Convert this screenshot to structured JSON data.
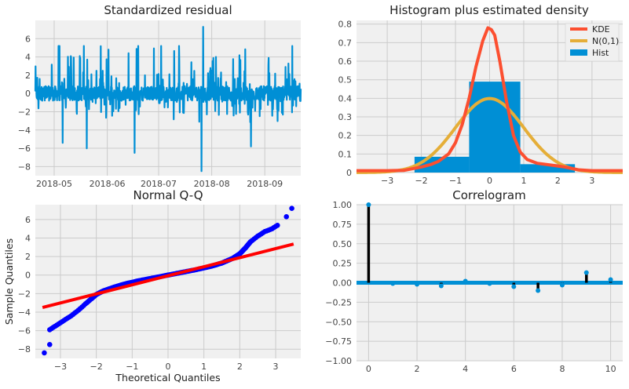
{
  "chart_data": [
    {
      "type": "line",
      "title": "Standardized residual",
      "xlabel": "",
      "ylabel": "",
      "x_ticks": [
        "2018-05",
        "2018-06",
        "2018-07",
        "2018-08",
        "2018-09"
      ],
      "xlim": [
        "2018-04-20",
        "2018-09-22"
      ],
      "ylim": [
        -9,
        8
      ],
      "y_ticks": [
        -8,
        -6,
        -4,
        -2,
        0,
        2,
        4,
        6
      ],
      "grid": true,
      "color": "#008fd5",
      "notable_points": [
        {
          "x": "2018-07-27",
          "y": 7.3
        },
        {
          "x": "2018-07-26",
          "y": -8.5
        },
        {
          "x": "2018-05-20",
          "y": -6.0
        },
        {
          "x": "2018-06-17",
          "y": -6.5
        },
        {
          "x": "2018-05-06",
          "y": -5.4
        },
        {
          "x": "2018-08-24",
          "y": -5.8
        }
      ]
    },
    {
      "type": "bar",
      "title": "Histogram plus estimated density",
      "xlim": [
        -3.9,
        3.9
      ],
      "ylim": [
        0,
        0.82
      ],
      "x_ticks": [
        -3,
        -2,
        -1,
        0,
        1,
        2,
        3
      ],
      "y_ticks": [
        0,
        0.1,
        0.2,
        0.3,
        0.4,
        0.5,
        0.6,
        0.7,
        0.8
      ],
      "grid": true,
      "legend_position": "top-right",
      "bins": [
        {
          "from": -2.2,
          "to": -0.6,
          "value": 0.085
        },
        {
          "from": -0.6,
          "to": 0.9,
          "value": 0.49
        },
        {
          "from": 0.9,
          "to": 2.5,
          "value": 0.045
        }
      ],
      "series": [
        {
          "name": "KDE",
          "color": "#fc4f30",
          "x": [
            -3.9,
            -3.0,
            -2.5,
            -2.0,
            -1.7,
            -1.5,
            -1.2,
            -1.0,
            -0.8,
            -0.6,
            -0.4,
            -0.2,
            -0.05,
            0.05,
            0.15,
            0.3,
            0.5,
            0.7,
            0.9,
            1.1,
            1.4,
            1.8,
            2.2,
            2.6,
            3.0,
            3.5,
            3.9
          ],
          "y": [
            0.01,
            0.01,
            0.012,
            0.03,
            0.045,
            0.06,
            0.1,
            0.16,
            0.26,
            0.4,
            0.57,
            0.71,
            0.78,
            0.77,
            0.74,
            0.6,
            0.38,
            0.2,
            0.11,
            0.07,
            0.05,
            0.04,
            0.03,
            0.015,
            0.01,
            0.01,
            0.01
          ]
        },
        {
          "name": "N(0,1)",
          "color": "#e5ae38",
          "function": "normal_pdf"
        },
        {
          "name": "Hist",
          "color": "#008fd5"
        }
      ]
    },
    {
      "type": "scatter",
      "title": "Normal Q-Q",
      "xlabel": "Theoretical Quantiles",
      "ylabel": "Sample Quantiles",
      "xlim": [
        -3.7,
        3.7
      ],
      "ylim": [
        -9,
        7.6
      ],
      "x_ticks": [
        -3,
        -2,
        -1,
        0,
        1,
        2,
        3
      ],
      "y_ticks": [
        -8,
        -6,
        -4,
        -2,
        0,
        2,
        4,
        6
      ],
      "grid": true,
      "point_color": "#0000ff",
      "line_color": "#ff0000",
      "reference_line": [
        [
          -3.5,
          -3.5
        ],
        [
          3.5,
          3.35
        ]
      ],
      "quantile_curve": {
        "x": [
          -3.3,
          -3.1,
          -2.9,
          -2.7,
          -2.5,
          -2.3,
          -2.15,
          -2.0,
          -1.8,
          -1.5,
          -1.2,
          -0.8,
          -0.4,
          0,
          0.4,
          0.8,
          1.2,
          1.5,
          1.8,
          2.0,
          2.15,
          2.3,
          2.5,
          2.7,
          2.9,
          3.1
        ],
        "y": [
          -5.9,
          -5.4,
          -4.9,
          -4.4,
          -3.8,
          -3.1,
          -2.6,
          -2.1,
          -1.7,
          -1.3,
          -0.95,
          -0.6,
          -0.3,
          0,
          0.3,
          0.6,
          0.95,
          1.3,
          1.8,
          2.3,
          2.9,
          3.6,
          4.2,
          4.7,
          5.0,
          5.5
        ]
      },
      "points": [
        {
          "x": -3.45,
          "y": -8.4
        },
        {
          "x": -3.3,
          "y": -7.5
        },
        {
          "x": 3.3,
          "y": 6.3
        },
        {
          "x": 3.45,
          "y": 7.2
        }
      ]
    },
    {
      "type": "bar",
      "title": "Correlogram",
      "xlim": [
        -0.5,
        10.5
      ],
      "ylim": [
        -1.0,
        1.0
      ],
      "x_ticks": [
        0,
        2,
        4,
        6,
        8,
        10
      ],
      "y_ticks": [
        -1.0,
        -0.75,
        -0.5,
        -0.25,
        0.0,
        0.25,
        0.5,
        0.75,
        1.0
      ],
      "y_tick_labels": [
        "−1.00",
        "−0.75",
        "−0.50",
        "−0.25",
        "0.00",
        "0.25",
        "0.50",
        "0.75",
        "1.00"
      ],
      "grid": true,
      "lags": [
        0,
        1,
        2,
        3,
        4,
        5,
        6,
        7,
        8,
        9,
        10
      ],
      "values": [
        1.0,
        -0.01,
        -0.02,
        -0.04,
        0.02,
        -0.01,
        -0.05,
        -0.1,
        -0.03,
        0.13,
        0.04
      ],
      "stem_color": "#000000",
      "marker_color": "#008fd5",
      "band_color": "#008fd5"
    }
  ]
}
